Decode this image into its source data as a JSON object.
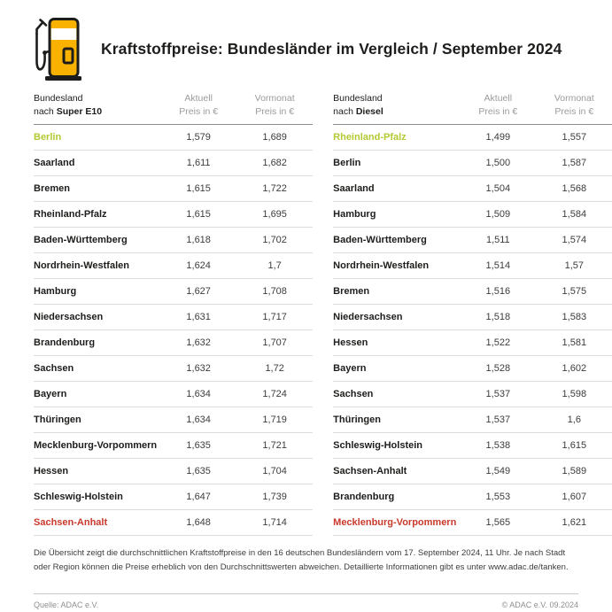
{
  "header": {
    "title": "Kraftstoffpreise: Bundesländer im Vergleich / September 2024",
    "icon": "fuel-pump-icon"
  },
  "chart_data": {
    "type": "table",
    "title": "Kraftstoffpreise: Bundesländer im Vergleich / September 2024",
    "column_headers": {
      "state_line1": "Bundesland",
      "state_line2_prefix": "nach ",
      "current_line1": "Aktuell",
      "current_line2": "Preis in €",
      "previous_line1": "Vormonat",
      "previous_line2": "Preis in €"
    },
    "tables": [
      {
        "fuel": "Super E10",
        "rows": [
          {
            "state": "Berlin",
            "aktuell": "1,579",
            "vormonat": "1,689",
            "highlight": "best"
          },
          {
            "state": "Saarland",
            "aktuell": "1,611",
            "vormonat": "1,682",
            "highlight": ""
          },
          {
            "state": "Bremen",
            "aktuell": "1,615",
            "vormonat": "1,722",
            "highlight": ""
          },
          {
            "state": "Rheinland-Pfalz",
            "aktuell": "1,615",
            "vormonat": "1,695",
            "highlight": ""
          },
          {
            "state": "Baden-Württemberg",
            "aktuell": "1,618",
            "vormonat": "1,702",
            "highlight": ""
          },
          {
            "state": "Nordrhein-Westfalen",
            "aktuell": "1,624",
            "vormonat": "1,7",
            "highlight": ""
          },
          {
            "state": "Hamburg",
            "aktuell": "1,627",
            "vormonat": "1,708",
            "highlight": ""
          },
          {
            "state": "Niedersachsen",
            "aktuell": "1,631",
            "vormonat": "1,717",
            "highlight": ""
          },
          {
            "state": "Brandenburg",
            "aktuell": "1,632",
            "vormonat": "1,707",
            "highlight": ""
          },
          {
            "state": "Sachsen",
            "aktuell": "1,632",
            "vormonat": "1,72",
            "highlight": ""
          },
          {
            "state": "Bayern",
            "aktuell": "1,634",
            "vormonat": "1,724",
            "highlight": ""
          },
          {
            "state": "Thüringen",
            "aktuell": "1,634",
            "vormonat": "1,719",
            "highlight": ""
          },
          {
            "state": "Mecklenburg-Vorpommern",
            "aktuell": "1,635",
            "vormonat": "1,721",
            "highlight": ""
          },
          {
            "state": "Hessen",
            "aktuell": "1,635",
            "vormonat": "1,704",
            "highlight": ""
          },
          {
            "state": "Schleswig-Holstein",
            "aktuell": "1,647",
            "vormonat": "1,739",
            "highlight": ""
          },
          {
            "state": "Sachsen-Anhalt",
            "aktuell": "1,648",
            "vormonat": "1,714",
            "highlight": "worst"
          }
        ]
      },
      {
        "fuel": "Diesel",
        "rows": [
          {
            "state": "Rheinland-Pfalz",
            "aktuell": "1,499",
            "vormonat": "1,557",
            "highlight": "best"
          },
          {
            "state": "Berlin",
            "aktuell": "1,500",
            "vormonat": "1,587",
            "highlight": ""
          },
          {
            "state": "Saarland",
            "aktuell": "1,504",
            "vormonat": "1,568",
            "highlight": ""
          },
          {
            "state": "Hamburg",
            "aktuell": "1,509",
            "vormonat": "1,584",
            "highlight": ""
          },
          {
            "state": "Baden-Württemberg",
            "aktuell": "1,511",
            "vormonat": "1,574",
            "highlight": ""
          },
          {
            "state": "Nordrhein-Westfalen",
            "aktuell": "1,514",
            "vormonat": "1,57",
            "highlight": ""
          },
          {
            "state": "Bremen",
            "aktuell": "1,516",
            "vormonat": "1,575",
            "highlight": ""
          },
          {
            "state": "Niedersachsen",
            "aktuell": "1,518",
            "vormonat": "1,583",
            "highlight": ""
          },
          {
            "state": "Hessen",
            "aktuell": "1,522",
            "vormonat": "1,581",
            "highlight": ""
          },
          {
            "state": "Bayern",
            "aktuell": "1,528",
            "vormonat": "1,602",
            "highlight": ""
          },
          {
            "state": "Sachsen",
            "aktuell": "1,537",
            "vormonat": "1,598",
            "highlight": ""
          },
          {
            "state": "Thüringen",
            "aktuell": "1,537",
            "vormonat": "1,6",
            "highlight": ""
          },
          {
            "state": "Schleswig-Holstein",
            "aktuell": "1,538",
            "vormonat": "1,615",
            "highlight": ""
          },
          {
            "state": "Sachsen-Anhalt",
            "aktuell": "1,549",
            "vormonat": "1,589",
            "highlight": ""
          },
          {
            "state": "Brandenburg",
            "aktuell": "1,553",
            "vormonat": "1,607",
            "highlight": ""
          },
          {
            "state": "Mecklenburg-Vorpommern",
            "aktuell": "1,565",
            "vormonat": "1,621",
            "highlight": "worst"
          }
        ]
      }
    ]
  },
  "footnote": {
    "text": "Die Übersicht zeigt die durchschnittlichen Kraftstoffpreise in den 16 deutschen Bundesländern vom 17. September 2024, 11 Uhr. Je nach Stadt oder Region können die Preise erheblich von den Durchschnittswerten abweichen. Detaillierte Informationen gibt es unter www.adac.de/tanken."
  },
  "source": {
    "left": "Quelle: ADAC e.V.",
    "right": "© ADAC e.V. 09.2024"
  },
  "colors": {
    "best_green": "#b4c932",
    "worst_red": "#c9392c",
    "pump_yellow": "#f9b200",
    "outline_dark": "#1d1d1b"
  }
}
